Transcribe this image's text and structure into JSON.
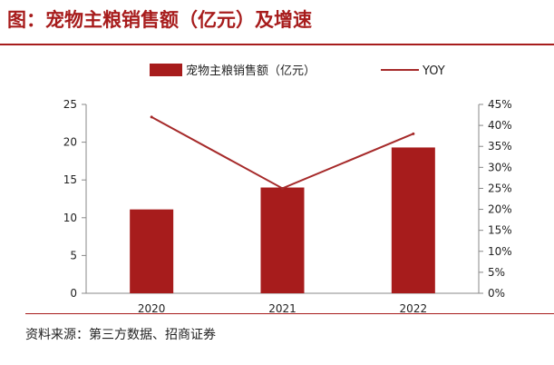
{
  "title": "图：宠物主粮销售额（亿元）及增速",
  "source": "资料来源：第三方数据、招商证券",
  "colors": {
    "bar": "#a71c1c",
    "line": "#a62a2a",
    "title": "#a71c1c",
    "axis": "#888888"
  },
  "chart_data": {
    "type": "bar",
    "categories": [
      "2020",
      "2021",
      "2022"
    ],
    "series": [
      {
        "name": "宠物主粮销售额（亿元）",
        "type": "bar",
        "axis": "left",
        "values": [
          11.1,
          14.0,
          19.3
        ]
      },
      {
        "name": "YOY",
        "type": "line",
        "axis": "right",
        "values": [
          42.0,
          25.0,
          38.0
        ]
      }
    ],
    "y_left": {
      "min": 0,
      "max": 25,
      "ticks": [
        0,
        5,
        10,
        15,
        20,
        25
      ]
    },
    "y_right": {
      "min": 0,
      "max": 45,
      "ticks": [
        "0%",
        "5%",
        "10%",
        "15%",
        "20%",
        "25%",
        "30%",
        "35%",
        "40%",
        "45%"
      ]
    },
    "legend_position": "top-center",
    "grid": false
  }
}
